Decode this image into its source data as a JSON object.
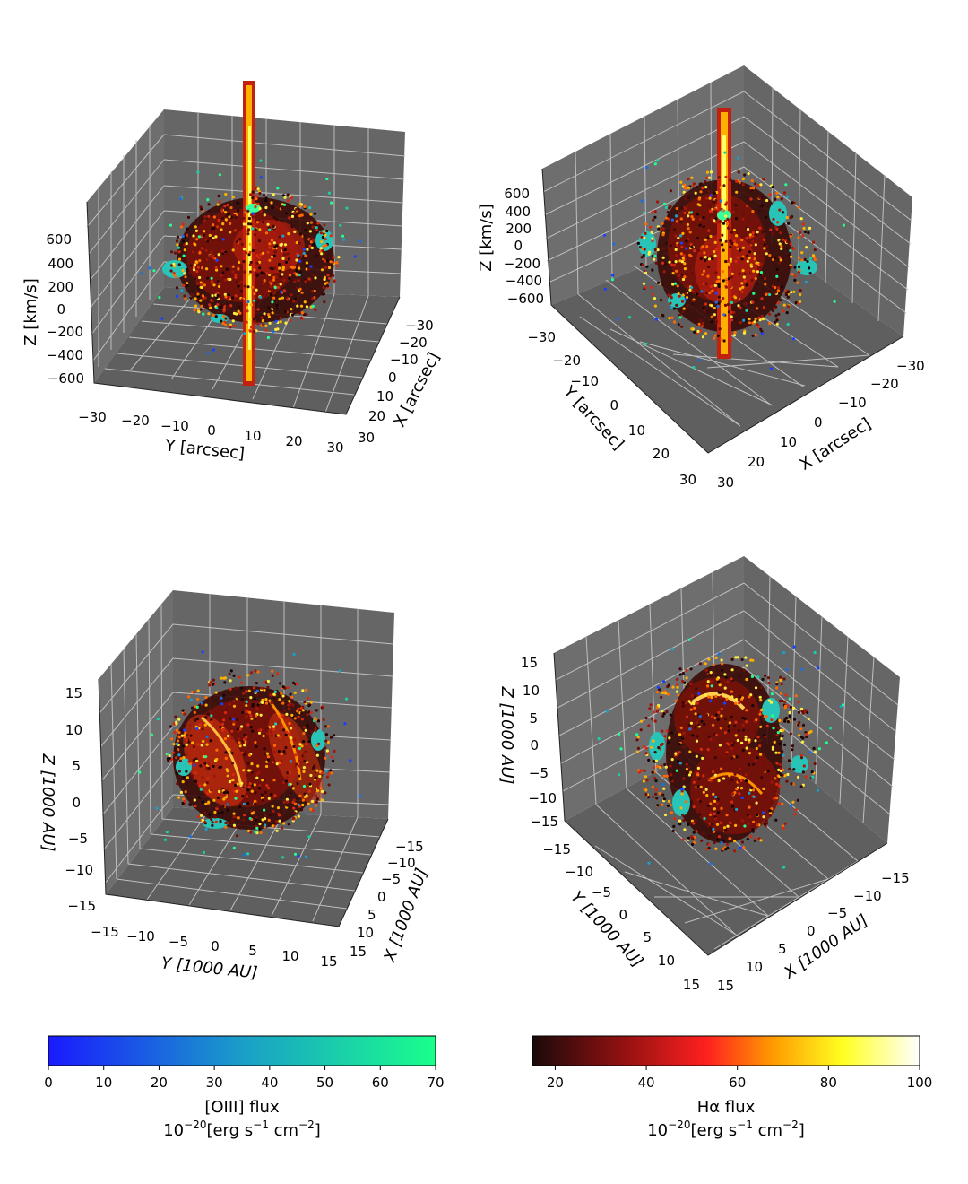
{
  "chart_data": [
    {
      "type": "scatter3d",
      "panel": "top-left",
      "xlabel": "X [arcsec]",
      "ylabel": "Y [arcsec]",
      "zlabel": "Z [km/s]",
      "xticks": [
        "−30",
        "−20",
        "−10",
        "0",
        "10",
        "20",
        "30"
      ],
      "yticks": [
        "−30",
        "−20",
        "−10",
        "0",
        "10",
        "20",
        "30"
      ],
      "zticks": [
        "−600",
        "−400",
        "−200",
        "0",
        "200",
        "400",
        "600"
      ],
      "xlim": [
        -30,
        30
      ],
      "ylim": [
        -30,
        30
      ],
      "zlim": [
        -700,
        700
      ],
      "series": [
        "Hα flux",
        "[OIII] flux"
      ]
    },
    {
      "type": "scatter3d",
      "panel": "top-right",
      "xlabel": "X [arcsec]",
      "ylabel": "Y [arcsec]",
      "zlabel": "Z [km/s]",
      "xticks": [
        "−30",
        "−20",
        "−10",
        "0",
        "10",
        "20",
        "30"
      ],
      "yticks": [
        "−30",
        "−20",
        "−10",
        "0",
        "10",
        "20",
        "30"
      ],
      "zticks": [
        "−600",
        "−400",
        "−200",
        "0",
        "200",
        "400",
        "600"
      ],
      "xlim": [
        -30,
        30
      ],
      "ylim": [
        -30,
        30
      ],
      "zlim": [
        -700,
        700
      ],
      "series": [
        "Hα flux",
        "[OIII] flux"
      ]
    },
    {
      "type": "scatter3d",
      "panel": "bottom-left",
      "xlabel": "X [1000 AU]",
      "ylabel": "Y [1000 AU]",
      "zlabel": "Z [1000 AU]",
      "xticks": [
        "−15",
        "−10",
        "−5",
        "0",
        "5",
        "10",
        "15"
      ],
      "yticks": [
        "−15",
        "−10",
        "−5",
        "0",
        "5",
        "10",
        "15"
      ],
      "zticks": [
        "−15",
        "−10",
        "−5",
        "0",
        "5",
        "10",
        "15"
      ],
      "xlim": [
        -15,
        15
      ],
      "ylim": [
        -15,
        15
      ],
      "zlim": [
        -15,
        15
      ],
      "series": [
        "Hα flux",
        "[OIII] flux"
      ]
    },
    {
      "type": "scatter3d",
      "panel": "bottom-right",
      "xlabel": "X [1000 AU]",
      "ylabel": "Y [1000 AU]",
      "zlabel": "Z [1000 AU]",
      "xticks": [
        "−15",
        "−10",
        "−5",
        "0",
        "5",
        "10",
        "15"
      ],
      "yticks": [
        "−15",
        "−10",
        "−5",
        "0",
        "5",
        "10",
        "15"
      ],
      "zticks": [
        "−15",
        "−10",
        "−5",
        "0",
        "5",
        "10",
        "15"
      ],
      "xlim": [
        -15,
        15
      ],
      "ylim": [
        -15,
        15
      ],
      "zlim": [
        -15,
        15
      ],
      "series": [
        "Hα flux",
        "[OIII] flux"
      ]
    }
  ],
  "colorbars": {
    "oiii": {
      "label": "[OIII] flux",
      "units_prefix": "10",
      "units_exp": "−20",
      "units_body": "[erg s",
      "units_exp2": "−1",
      "units_mid": " cm",
      "units_exp3": "−2",
      "units_end": "]",
      "ticks": [
        "0",
        "10",
        "20",
        "30",
        "40",
        "50",
        "60",
        "70"
      ],
      "range": [
        0,
        70
      ],
      "colors": [
        "#1a1aff",
        "#1a7fd0",
        "#1aff8c"
      ]
    },
    "halpha": {
      "label": "Hα flux",
      "units_prefix": "10",
      "units_exp": "−20",
      "units_body": "[erg s",
      "units_exp2": "−1",
      "units_mid": " cm",
      "units_exp3": "−2",
      "units_end": "]",
      "ticks": [
        "20",
        "40",
        "60",
        "80",
        "100"
      ],
      "range": [
        15,
        100
      ],
      "colors": [
        "#1a0a0a",
        "#8b1010",
        "#ff2020",
        "#ff9a00",
        "#ffff20",
        "#ffffff"
      ]
    }
  },
  "pane_color": "#666666"
}
